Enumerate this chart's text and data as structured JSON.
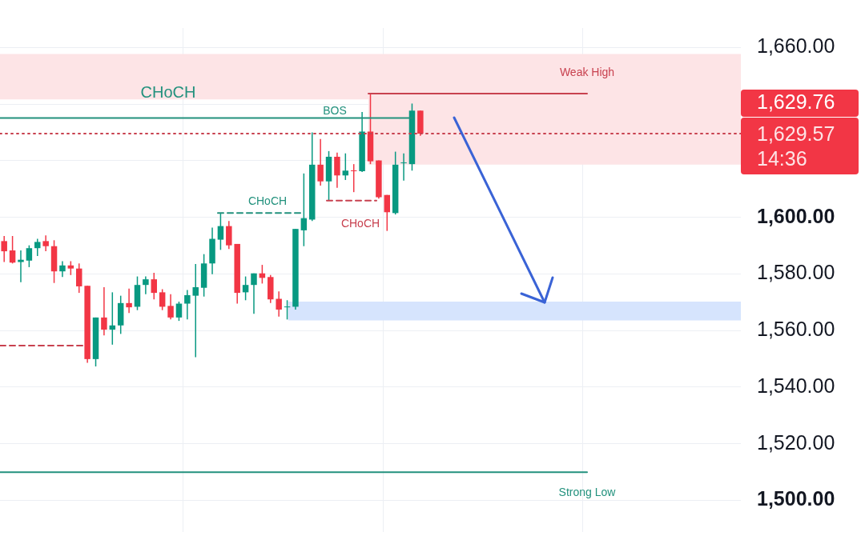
{
  "chart_data": {
    "type": "candlestick",
    "categories": [
      null,
      null,
      null,
      null,
      null,
      null,
      null,
      null,
      null,
      null,
      null,
      null,
      null,
      null,
      null,
      null,
      null,
      null,
      null,
      null,
      null,
      null,
      null,
      null,
      null,
      null,
      null,
      null,
      null,
      null,
      null,
      null,
      null,
      null,
      null,
      null,
      null,
      null,
      null,
      null,
      null,
      null,
      null,
      null,
      null,
      null,
      null,
      null,
      null,
      null,
      null,
      null,
      null,
      null,
      null,
      null,
      null,
      null,
      null,
      null,
      null,
      null,
      null,
      null,
      null,
      null,
      null,
      null,
      null,
      null,
      null,
      null,
      null,
      null,
      null,
      null,
      null,
      null,
      null,
      null,
      null,
      null,
      null,
      null,
      null,
      null,
      null,
      null,
      null
    ],
    "ohlc": [
      [
        1591.6,
        1593.4,
        1584.2,
        1588.0
      ],
      [
        1588.3,
        1593.4,
        1583.7,
        1584.0
      ],
      [
        1584.2,
        1588.3,
        1577.1,
        1585.0
      ],
      [
        1584.7,
        1590.1,
        1582.4,
        1589.1
      ],
      [
        1589.1,
        1592.4,
        1586.3,
        1591.3
      ],
      [
        1591.6,
        1593.6,
        1588.0,
        1589.8
      ],
      [
        1589.8,
        1591.9,
        1576.8,
        1580.9
      ],
      [
        1580.9,
        1584.5,
        1578.9,
        1583.0
      ],
      [
        1583.0,
        1584.5,
        1579.6,
        1581.9
      ],
      [
        1581.9,
        1583.7,
        1573.3,
        1575.6
      ],
      [
        1575.8,
        1575.8,
        1548.6,
        1549.9
      ],
      [
        1549.9,
        1564.6,
        1547.3,
        1564.6
      ],
      [
        1564.6,
        1575.3,
        1558.3,
        1560.3
      ],
      [
        1560.3,
        1573.5,
        1555.0,
        1561.8
      ],
      [
        1561.8,
        1572.3,
        1558.8,
        1569.7
      ],
      [
        1569.7,
        1574.8,
        1566.2,
        1568.2
      ],
      [
        1568.4,
        1579.1,
        1567.2,
        1576.1
      ],
      [
        1576.1,
        1579.1,
        1572.8,
        1578.1
      ],
      [
        1578.1,
        1580.4,
        1571.0,
        1573.3
      ],
      [
        1573.5,
        1574.6,
        1567.2,
        1568.4
      ],
      [
        1568.7,
        1572.8,
        1563.9,
        1564.6
      ],
      [
        1564.6,
        1570.2,
        1563.4,
        1569.5
      ],
      [
        1569.5,
        1574.3,
        1563.9,
        1572.5
      ],
      [
        1572.3,
        1583.5,
        1550.6,
        1575.3
      ],
      [
        1575.1,
        1587.0,
        1572.0,
        1583.7
      ],
      [
        1583.7,
        1596.4,
        1579.9,
        1592.4
      ],
      [
        1592.1,
        1601.5,
        1588.5,
        1596.9
      ],
      [
        1596.9,
        1598.7,
        1588.8,
        1590.1
      ],
      [
        1590.6,
        1590.6,
        1569.5,
        1573.3
      ],
      [
        1573.5,
        1579.1,
        1570.7,
        1576.1
      ],
      [
        1576.1,
        1580.2,
        1565.9,
        1580.2
      ],
      [
        1580.2,
        1583.2,
        1576.6,
        1578.6
      ],
      [
        1578.9,
        1579.6,
        1569.7,
        1571.0
      ],
      [
        1571.2,
        1573.8,
        1564.9,
        1567.4
      ],
      [
        1568.2,
        1570.7,
        1563.9,
        1568.4
      ],
      [
        1568.4,
        1595.9,
        1567.4,
        1595.9
      ],
      [
        1595.4,
        1615.5,
        1589.8,
        1599.7
      ],
      [
        1599.2,
        1630.0,
        1598.7,
        1618.6
      ],
      [
        1618.6,
        1627.7,
        1611.2,
        1612.7
      ],
      [
        1612.7,
        1623.4,
        1605.9,
        1621.4
      ],
      [
        1621.4,
        1622.9,
        1610.4,
        1614.8
      ],
      [
        1614.8,
        1622.6,
        1613.2,
        1616.5
      ],
      [
        1616.5,
        1618.8,
        1608.9,
        1616.3
      ],
      [
        1616.3,
        1637.2,
        1616.0,
        1630.3
      ],
      [
        1630.3,
        1643.7,
        1618.8,
        1619.8
      ],
      [
        1620.1,
        1620.1,
        1606.6,
        1607.1
      ],
      [
        1607.9,
        1607.9,
        1595.2,
        1601.8
      ],
      [
        1601.5,
        1623.2,
        1601.0,
        1618.6
      ],
      [
        1619.1,
        1622.6,
        1613.0,
        1619.3
      ],
      [
        1618.8,
        1640.2,
        1616.5,
        1637.7
      ],
      [
        1637.7,
        1637.7,
        1628.8,
        1629.57
      ],
      null,
      null,
      null,
      null,
      null,
      null,
      null,
      null,
      null,
      null,
      null,
      null,
      null,
      null,
      null,
      null,
      null,
      null,
      null,
      null,
      null,
      null,
      null,
      null,
      null,
      null,
      null,
      null,
      null,
      null,
      null,
      null,
      null,
      null,
      null,
      null,
      null,
      null
    ],
    "colors": [
      "#f23645",
      "#f23645",
      "#089981",
      "#089981",
      "#089981",
      "#f23645",
      "#f23645",
      "#089981",
      "#f23645",
      "#f23645",
      "#f23645",
      "#089981",
      "#f23645",
      "#089981",
      "#089981",
      "#f23645",
      "#089981",
      "#089981",
      "#f23645",
      "#f23645",
      "#f23645",
      "#089981",
      "#089981",
      "#089981",
      "#089981",
      "#089981",
      "#089981",
      "#f23645",
      "#f23645",
      "#089981",
      "#089981",
      "#f23645",
      "#f23645",
      "#f23645",
      "#089981",
      "#089981",
      "#089981",
      "#089981",
      "#f23645",
      "#089981",
      "#f23645",
      "#089981",
      "#f23645",
      "#089981",
      "#f23645",
      "#f23645",
      "#f23645",
      "#089981",
      "#089981",
      "#089981",
      "#f23645",
      null,
      null,
      null,
      null,
      null,
      null,
      null,
      null,
      null,
      null,
      null,
      null,
      null,
      null,
      null,
      null,
      null,
      null,
      null,
      null,
      null,
      null,
      null,
      null,
      null,
      null,
      null,
      null,
      null,
      null,
      null,
      null,
      null,
      null,
      null,
      null,
      null,
      null
    ],
    "ylim": [
      1488.8,
      1666.9
    ],
    "yticks": [
      {
        "value": 1500,
        "label": "1,500.00"
      },
      {
        "value": 1520,
        "label": "1,520.00"
      },
      {
        "value": 1540,
        "label": "1,540.00"
      },
      {
        "value": 1560,
        "label": "1,560.00"
      },
      {
        "value": 1580,
        "label": "1,580.00"
      },
      {
        "value": 1600,
        "label": "1,600.00"
      },
      {
        "value": 1620,
        "label": null
      },
      {
        "value": 1640,
        "label": null
      },
      {
        "value": 1660,
        "label": "1,660.00"
      }
    ],
    "tick_labels": "y",
    "grid": true,
    "bands": [
      {
        "axis": "y",
        "from": 1641.7,
        "to": 1657.7,
        "label": "CHoCH",
        "color": "#fde4e6"
      },
      {
        "axis": "y",
        "from": 1618.6,
        "to": 1644.0,
        "color": "#fde4e6"
      },
      {
        "axis": "y",
        "from": 1563.6,
        "to": 1570.2,
        "color": "#d6e4fd"
      }
    ],
    "ref_lines": [
      {
        "axis": "y",
        "value": 1635.1,
        "label": "BOS",
        "color": "#22917d",
        "line_style": "solid"
      },
      {
        "axis": "y",
        "value": 1601.5,
        "label": "CHoCH",
        "color": "#22917d",
        "line_style": "dashed"
      },
      {
        "axis": "y",
        "value": 1605.9,
        "label": "CHoCH",
        "color": "#c8414f",
        "line_style": "dashed"
      },
      {
        "axis": "y",
        "value": 1554.7,
        "color": "#c8414f",
        "line_style": "dashed"
      },
      {
        "axis": "y",
        "value": 1643.7,
        "label": "Weak High",
        "color": "#c8414f",
        "line_style": "solid"
      },
      {
        "axis": "y",
        "value": 1509.9,
        "label": "Strong Low",
        "color": "#22917d",
        "line_style": "solid"
      },
      {
        "axis": "y",
        "value": 1629.57,
        "color": "#c8414f",
        "line_style": "dotted"
      }
    ],
    "annotations": [
      "1,629.76",
      "1,629.57",
      "14:36"
    ]
  }
}
